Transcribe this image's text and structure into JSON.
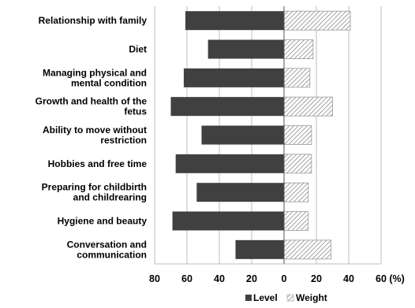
{
  "chart_data": {
    "type": "bar",
    "orientation": "horizontal-diverging",
    "categories": [
      "Relationship with family",
      "Diet",
      "Managing physical and mental condition",
      "Growth and health of the fetus",
      "Ability to move without restriction",
      "Hobbies and free time",
      "Preparing for childbirth and childrearing",
      "Hygiene and beauty",
      "Conversation and communication"
    ],
    "category_lines": [
      [
        "Relationship with family"
      ],
      [
        "Diet"
      ],
      [
        "Managing physical and",
        "mental condition"
      ],
      [
        "Growth and health of the",
        "fetus"
      ],
      [
        "Ability to move without",
        "restriction"
      ],
      [
        "Hobbies and free time"
      ],
      [
        "Preparing for childbirth",
        "and childrearing"
      ],
      [
        "Hygiene and beauty"
      ],
      [
        "Conversation and",
        "communication"
      ]
    ],
    "series": [
      {
        "name": "Level",
        "direction": "left",
        "color": "#404040",
        "values": [
          61,
          47,
          62,
          70,
          51,
          67,
          54,
          69,
          30
        ]
      },
      {
        "name": "Weight",
        "direction": "right",
        "pattern": "diagonal-hatch",
        "values": [
          41,
          18,
          16,
          30,
          17,
          17,
          15,
          15,
          29
        ]
      }
    ],
    "x_tick_labels": [
      "80",
      "60",
      "40",
      "20",
      "0",
      "20",
      "40",
      "60 (%)"
    ],
    "x_ticks": [
      -80,
      -60,
      -40,
      -20,
      0,
      20,
      40,
      60
    ],
    "xlim": [
      -80,
      60
    ],
    "grid": "vertical-major",
    "legend": "bottom-center"
  }
}
